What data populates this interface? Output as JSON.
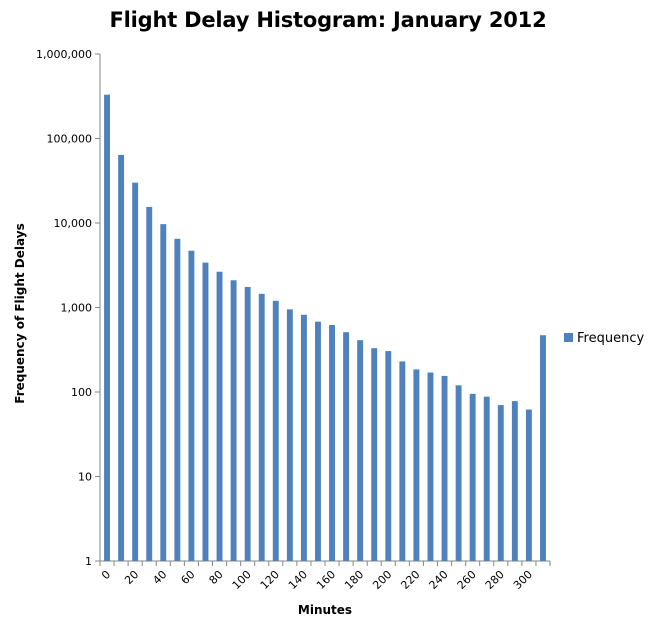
{
  "chart_data": {
    "type": "bar",
    "title": "Flight Delay Histogram: January 2012",
    "xlabel": "Minutes",
    "ylabel": "Frequency of Flight Delays",
    "y_scale": "log",
    "ylim": [
      1,
      1000000
    ],
    "y_ticks": [
      "1",
      "10",
      "100",
      "1,000",
      "10,000",
      "100,000",
      "1,000,000"
    ],
    "x_tick_labels": [
      "0",
      "20",
      "40",
      "60",
      "80",
      "100",
      "120",
      "140",
      "160",
      "180",
      "200",
      "220",
      "240",
      "260",
      "280",
      "300"
    ],
    "grid": false,
    "legend": {
      "position": "right",
      "entries": [
        "Frequency"
      ]
    },
    "bar_color": "#4F81BD",
    "categories": [
      0,
      10,
      20,
      30,
      40,
      50,
      60,
      70,
      80,
      90,
      100,
      110,
      120,
      130,
      140,
      150,
      160,
      170,
      180,
      190,
      200,
      210,
      220,
      230,
      240,
      250,
      260,
      270,
      280,
      290,
      300,
      310
    ],
    "series": [
      {
        "name": "Frequency",
        "values": [
          330000,
          64000,
          30000,
          15500,
          9700,
          6500,
          4700,
          3400,
          2650,
          2100,
          1750,
          1450,
          1200,
          950,
          820,
          680,
          620,
          510,
          410,
          330,
          305,
          230,
          185,
          170,
          155,
          120,
          95,
          88,
          70,
          78,
          62,
          470
        ]
      }
    ]
  }
}
